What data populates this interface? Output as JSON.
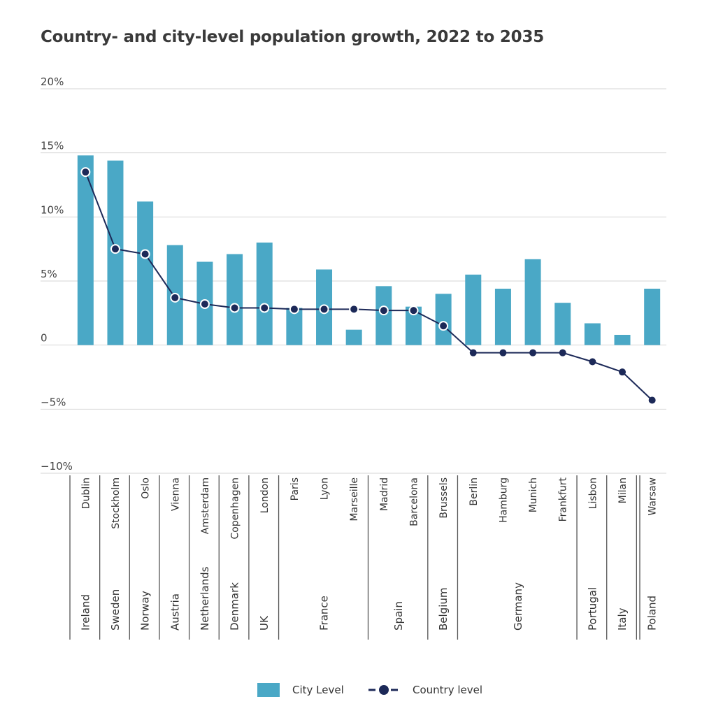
{
  "chart_data": {
    "type": "bar",
    "title": "Country- and city-level population growth, 2022 to 2035",
    "y_ticks": [
      "20%",
      "15%",
      "10%",
      "5%",
      "0",
      "−5%",
      "−10%"
    ],
    "ylim": [
      -10,
      20
    ],
    "y_tick_values": [
      20,
      15,
      10,
      5,
      0,
      -5,
      -10
    ],
    "grid": "horizontal",
    "legend_position": "bottom-center",
    "colors": {
      "city": "#4aa8c6",
      "country": "#1c2958",
      "grid": "#d6d6d6",
      "axis": "#555555"
    },
    "countries": [
      {
        "name": "Ireland",
        "cities": [
          "Dublin"
        ]
      },
      {
        "name": "Sweden",
        "cities": [
          "Stockholm"
        ]
      },
      {
        "name": "Norway",
        "cities": [
          "Oslo"
        ]
      },
      {
        "name": "Austria",
        "cities": [
          "Vienna"
        ]
      },
      {
        "name": "Netherlands",
        "cities": [
          "Amsterdam"
        ]
      },
      {
        "name": "Denmark",
        "cities": [
          "Copenhagen"
        ]
      },
      {
        "name": "UK",
        "cities": [
          "London"
        ]
      },
      {
        "name": "France",
        "cities": [
          "Paris",
          "Lyon",
          "Marseille"
        ]
      },
      {
        "name": "Spain",
        "cities": [
          "Madrid",
          "Barcelona"
        ]
      },
      {
        "name": "Belgium",
        "cities": [
          "Brussels"
        ]
      },
      {
        "name": "Germany",
        "cities": [
          "Berlin",
          "Hamburg",
          "Munich",
          "Frankfurt"
        ]
      },
      {
        "name": "Portugal",
        "cities": [
          "Lisbon"
        ]
      },
      {
        "name": "Italy",
        "cities": [
          "Milan"
        ]
      },
      {
        "name": "Poland",
        "cities": [
          "Warsaw"
        ]
      }
    ],
    "series": [
      {
        "name": "City Level",
        "type": "bar",
        "categories": [
          "Dublin",
          "Stockholm",
          "Oslo",
          "Vienna",
          "Amsterdam",
          "Copenhagen",
          "London",
          "Paris",
          "Lyon",
          "Marseille",
          "Madrid",
          "Barcelona",
          "Brussels",
          "Berlin",
          "Hamburg",
          "Munich",
          "Frankfurt",
          "Lisbon",
          "Milan",
          "Warsaw"
        ],
        "values": [
          14.8,
          14.4,
          11.2,
          7.8,
          6.5,
          7.1,
          8.0,
          2.9,
          5.9,
          1.2,
          4.6,
          3.0,
          4.0,
          5.5,
          4.4,
          6.7,
          3.3,
          1.7,
          0.8,
          4.4
        ]
      },
      {
        "name": "Country level",
        "type": "line",
        "categories": [
          "Dublin",
          "Stockholm",
          "Oslo",
          "Vienna",
          "Amsterdam",
          "Copenhagen",
          "London",
          "Paris",
          "Lyon",
          "Marseille",
          "Madrid",
          "Barcelona",
          "Brussels",
          "Berlin",
          "Hamburg",
          "Munich",
          "Frankfurt",
          "Lisbon",
          "Milan",
          "Warsaw"
        ],
        "values": [
          13.5,
          7.5,
          7.1,
          3.7,
          3.2,
          2.9,
          2.9,
          2.8,
          2.8,
          2.8,
          2.7,
          2.7,
          1.5,
          -0.6,
          -0.6,
          -0.6,
          -0.6,
          -1.3,
          -2.1,
          -4.3
        ]
      }
    ]
  }
}
